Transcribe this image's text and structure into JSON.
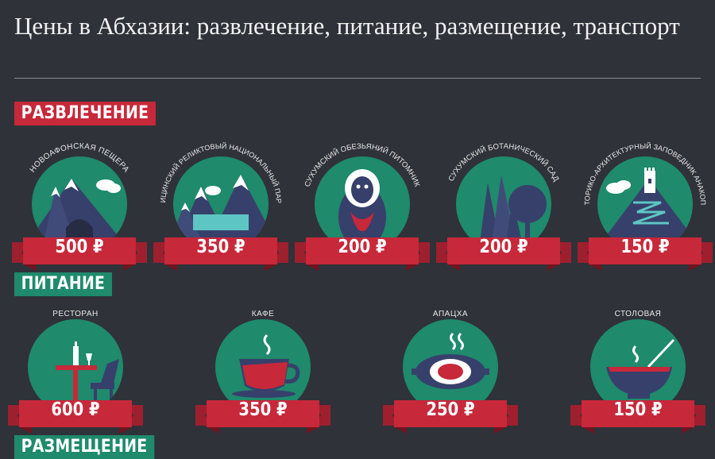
{
  "title": "Цены в Абхазии: развлечение, питание, размещение, транспорт",
  "colors": {
    "background": "#2f3239",
    "green": "#1f8a6c",
    "red": "#c7283a",
    "navy": "#37406b"
  },
  "sections": {
    "entertainment": {
      "label": "РАЗВЛЕЧЕНИЕ",
      "items": [
        {
          "name": "НОВОАФОНСКАЯ ПЕЩЕРА",
          "price": "500 ₽",
          "icon": "cave-mountain-icon"
        },
        {
          "name": "РИЦИНСКИЙ РЕЛИКТОВЫЙ НАЦИОНАЛЬНЫЙ ПАРК",
          "price": "350 ₽",
          "icon": "mountain-lake-icon"
        },
        {
          "name": "СУХУМСКИЙ ОБЕЗЬЯНИЙ ПИТОМНИК",
          "price": "200 ₽",
          "icon": "monkey-icon"
        },
        {
          "name": "СУХУМСКИЙ БОТАНИЧЕСКИЙ САД",
          "price": "200 ₽",
          "icon": "trees-icon"
        },
        {
          "name": "ИСТОРИКО-АРХИТЕКТУРНЫЙ ЗАПОВЕДНИК АНАКОПИЯ",
          "price": "150 ₽",
          "icon": "fortress-mountain-icon"
        }
      ]
    },
    "food": {
      "label": "ПИТАНИЕ",
      "items": [
        {
          "name": "РЕСТОРАН",
          "price": "600 ₽",
          "icon": "restaurant-table-icon"
        },
        {
          "name": "КАФЕ",
          "price": "350 ₽",
          "icon": "coffee-cup-icon"
        },
        {
          "name": "АПАЦХА",
          "price": "250 ₽",
          "icon": "grill-plate-icon"
        },
        {
          "name": "СТОЛОВАЯ",
          "price": "150 ₽",
          "icon": "soup-bowl-icon"
        }
      ]
    },
    "lodging": {
      "label": "РАЗМЕЩЕНИЕ"
    }
  }
}
